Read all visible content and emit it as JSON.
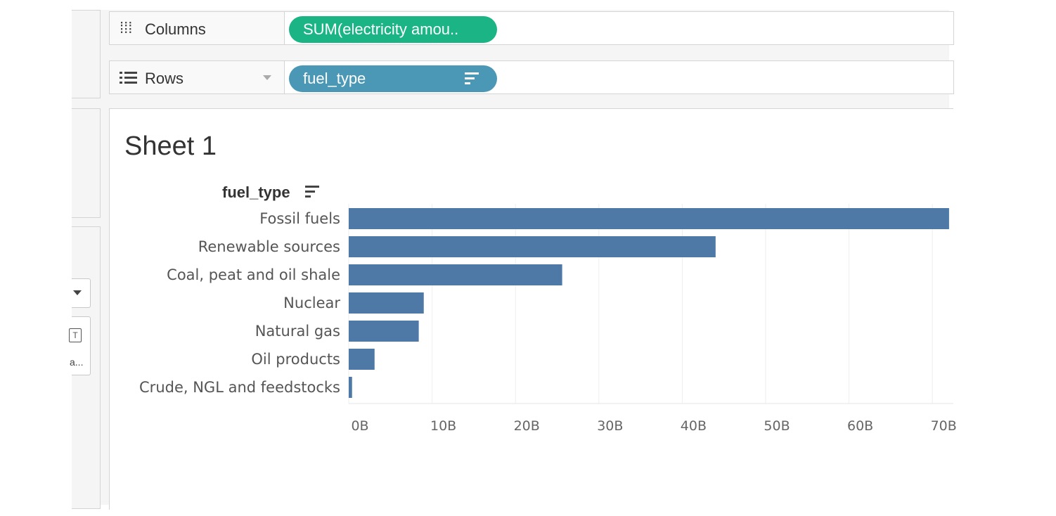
{
  "shelves": {
    "columns": {
      "label": "Columns",
      "pill": "SUM(electricity amou.."
    },
    "rows": {
      "label": "Rows",
      "pill": "fuel_type"
    }
  },
  "left_pane": {
    "card_label": "a..."
  },
  "sheet": {
    "title": "Sheet 1",
    "row_header": "fuel_type"
  },
  "colors": {
    "columns_pill": "#1bb585",
    "rows_pill": "#4b98b6",
    "bar": "#4e79a7"
  },
  "icons": {
    "columns": "columns-icon",
    "rows": "rows-icon",
    "sort": "sort-descending-icon",
    "dropdown": "chevron-down-icon"
  },
  "chart_data": {
    "type": "bar",
    "orientation": "horizontal",
    "categories": [
      "Fossil fuels",
      "Renewable sources",
      "Coal, peat and oil shale",
      "Nuclear",
      "Natural gas",
      "Oil products",
      "Crude, NGL and feedstocks"
    ],
    "values": [
      72,
      44,
      25.6,
      9,
      8.4,
      3.1,
      0.4
    ],
    "value_unit": "B",
    "xlim": [
      0,
      72
    ],
    "x_ticks": [
      "0B",
      "10B",
      "20B",
      "30B",
      "40B",
      "50B",
      "60B",
      "70B"
    ],
    "tick_values": [
      0,
      10,
      20,
      30,
      40,
      50,
      60,
      70
    ],
    "ylabel": "fuel_type",
    "grid": true
  }
}
